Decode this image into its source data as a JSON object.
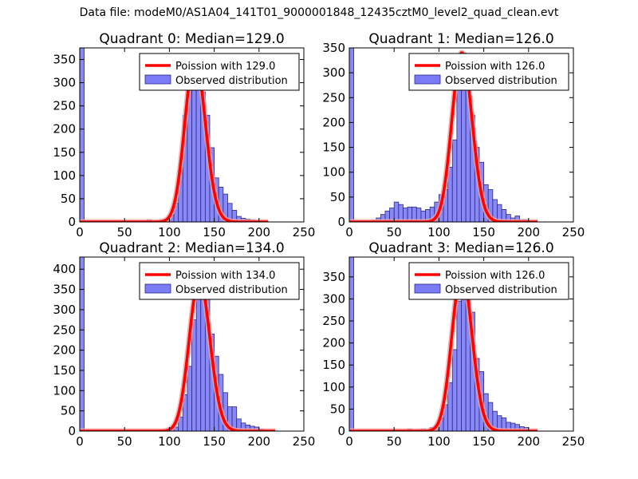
{
  "suptitle": "Data file: modeM0/AS1A04_141T01_9000001848_12435cztM0_level2_quad_clean.evt",
  "colors": {
    "bars": "#7b7bf5",
    "bar_edge": "#2a2a8a",
    "poisson": "#ff0000",
    "poisson_halo": "#f5a0a0"
  },
  "chart_data": [
    {
      "type": "bar",
      "title": "Quadrant 0: Median=129.0",
      "legend": [
        "Poission with 129.0",
        "Observed distribution"
      ],
      "legend_loc": "upper-right",
      "xlim": [
        0,
        250
      ],
      "ylim": [
        0,
        375
      ],
      "xticks": [
        0,
        50,
        100,
        150,
        200,
        250
      ],
      "yticks": [
        0,
        50,
        100,
        150,
        200,
        250,
        300,
        350
      ],
      "bin_width": 5,
      "bin_starts": [
        0,
        75,
        90,
        95,
        100,
        105,
        110,
        115,
        120,
        125,
        130,
        135,
        140,
        145,
        150,
        155,
        160,
        165,
        170,
        175,
        180,
        185,
        190,
        195,
        200,
        205
      ],
      "values": [
        375,
        5,
        3,
        5,
        15,
        40,
        110,
        230,
        290,
        345,
        330,
        280,
        230,
        160,
        95,
        75,
        60,
        40,
        25,
        12,
        8,
        6,
        5,
        3,
        2,
        2
      ],
      "poisson_mu": 129.0,
      "poisson_scale": 355,
      "poisson_range": [
        0,
        210
      ]
    },
    {
      "type": "bar",
      "title": "Quadrant 1: Median=126.0",
      "legend": [
        "Poission with 126.0",
        "Observed distribution"
      ],
      "legend_loc": "upper-right",
      "xlim": [
        0,
        250
      ],
      "ylim": [
        0,
        350
      ],
      "xticks": [
        0,
        50,
        100,
        150,
        200,
        250
      ],
      "yticks": [
        0,
        50,
        100,
        150,
        200,
        250,
        300,
        350
      ],
      "bin_width": 5,
      "bin_starts": [
        0,
        25,
        30,
        35,
        40,
        45,
        50,
        55,
        60,
        65,
        70,
        75,
        80,
        85,
        90,
        95,
        100,
        105,
        110,
        115,
        120,
        125,
        130,
        135,
        140,
        145,
        150,
        155,
        160,
        165,
        170,
        175,
        180,
        185,
        190,
        195,
        200
      ],
      "values": [
        350,
        3,
        8,
        15,
        22,
        28,
        40,
        35,
        28,
        30,
        30,
        28,
        22,
        25,
        30,
        40,
        55,
        65,
        110,
        165,
        270,
        340,
        310,
        215,
        150,
        120,
        75,
        65,
        45,
        35,
        25,
        15,
        8,
        12,
        5,
        5,
        2
      ],
      "poisson_mu": 126.0,
      "poisson_scale": 340,
      "poisson_range": [
        0,
        210
      ]
    },
    {
      "type": "bar",
      "title": "Quadrant 2: Median=134.0",
      "legend": [
        "Poission with 134.0",
        "Observed distribution"
      ],
      "legend_loc": "upper-right",
      "xlim": [
        0,
        250
      ],
      "ylim": [
        0,
        430
      ],
      "xticks": [
        0,
        50,
        100,
        150,
        200,
        250
      ],
      "yticks": [
        0,
        50,
        100,
        150,
        200,
        250,
        300,
        350,
        400
      ],
      "bin_width": 5,
      "bin_starts": [
        0,
        75,
        100,
        105,
        110,
        115,
        120,
        125,
        130,
        135,
        140,
        145,
        150,
        155,
        160,
        165,
        170,
        175,
        180,
        185,
        190,
        195,
        200,
        205,
        210
      ],
      "values": [
        430,
        2,
        5,
        10,
        35,
        90,
        160,
        275,
        330,
        380,
        335,
        240,
        185,
        140,
        95,
        60,
        60,
        30,
        20,
        15,
        12,
        10,
        5,
        3,
        2
      ],
      "poisson_mu": 134.0,
      "poisson_scale": 375,
      "poisson_range": [
        0,
        218
      ]
    },
    {
      "type": "bar",
      "title": "Quadrant 3: Median=126.0",
      "legend": [
        "Poission with 126.0",
        "Observed distribution"
      ],
      "legend_loc": "upper-right",
      "xlim": [
        0,
        250
      ],
      "ylim": [
        0,
        395
      ],
      "xticks": [
        0,
        50,
        100,
        150,
        200,
        250
      ],
      "yticks": [
        0,
        50,
        100,
        150,
        200,
        250,
        300,
        350
      ],
      "bin_width": 5,
      "bin_starts": [
        0,
        65,
        75,
        80,
        90,
        95,
        100,
        105,
        110,
        115,
        120,
        125,
        130,
        135,
        140,
        145,
        150,
        155,
        160,
        165,
        170,
        175,
        180,
        185,
        190,
        195,
        200
      ],
      "values": [
        395,
        5,
        3,
        5,
        8,
        12,
        30,
        60,
        110,
        185,
        295,
        355,
        330,
        270,
        165,
        135,
        85,
        65,
        45,
        35,
        30,
        20,
        18,
        15,
        10,
        8,
        2
      ],
      "poisson_mu": 126.0,
      "poisson_scale": 360,
      "poisson_range": [
        0,
        210
      ]
    }
  ]
}
